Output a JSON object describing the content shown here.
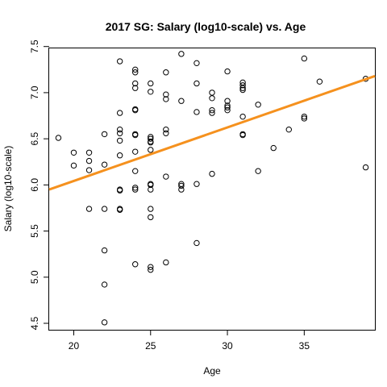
{
  "chart_data": {
    "type": "scatter",
    "title": "2017 SG: Salary (log10-scale) vs. Age",
    "xlabel": "Age",
    "ylabel": "Salary (log10-scale)",
    "xlim": [
      18.4,
      39.6
    ],
    "ylim": [
      4.43,
      7.48
    ],
    "x_ticks": [
      20,
      25,
      30,
      35
    ],
    "y_ticks": [
      4.5,
      5.0,
      5.5,
      6.0,
      6.5,
      7.0,
      7.5
    ],
    "x_tick_labels": [
      "20",
      "25",
      "30",
      "35"
    ],
    "y_tick_labels": [
      "4.5",
      "5.0",
      "5.5",
      "6.0",
      "6.5",
      "7.0",
      "7.5"
    ],
    "grid": false,
    "legend": "none",
    "fit_line": {
      "color": "#F5911E",
      "start": {
        "x": 18.4,
        "y": 5.95
      },
      "end": {
        "x": 39.6,
        "y": 7.18
      }
    },
    "points": [
      {
        "x": 19,
        "y": 6.51
      },
      {
        "x": 20,
        "y": 6.35
      },
      {
        "x": 20,
        "y": 6.21
      },
      {
        "x": 21,
        "y": 6.35
      },
      {
        "x": 21,
        "y": 6.26
      },
      {
        "x": 21,
        "y": 6.16
      },
      {
        "x": 21,
        "y": 5.74
      },
      {
        "x": 22,
        "y": 6.55
      },
      {
        "x": 22,
        "y": 6.22
      },
      {
        "x": 22,
        "y": 5.74
      },
      {
        "x": 22,
        "y": 5.29
      },
      {
        "x": 22,
        "y": 4.92
      },
      {
        "x": 22,
        "y": 4.51
      },
      {
        "x": 23,
        "y": 7.34
      },
      {
        "x": 23,
        "y": 6.78
      },
      {
        "x": 23,
        "y": 6.6
      },
      {
        "x": 23,
        "y": 6.56
      },
      {
        "x": 23,
        "y": 6.48
      },
      {
        "x": 23,
        "y": 6.32
      },
      {
        "x": 23,
        "y": 5.95
      },
      {
        "x": 23,
        "y": 5.94
      },
      {
        "x": 23,
        "y": 5.74
      },
      {
        "x": 23,
        "y": 5.73
      },
      {
        "x": 24,
        "y": 7.25
      },
      {
        "x": 24,
        "y": 7.22
      },
      {
        "x": 24,
        "y": 7.1
      },
      {
        "x": 24,
        "y": 7.05
      },
      {
        "x": 24,
        "y": 6.82
      },
      {
        "x": 24,
        "y": 6.81
      },
      {
        "x": 24,
        "y": 6.55
      },
      {
        "x": 24,
        "y": 6.54
      },
      {
        "x": 24,
        "y": 6.36
      },
      {
        "x": 24,
        "y": 6.15
      },
      {
        "x": 24,
        "y": 5.97
      },
      {
        "x": 24,
        "y": 5.95
      },
      {
        "x": 24,
        "y": 5.14
      },
      {
        "x": 25,
        "y": 7.1
      },
      {
        "x": 25,
        "y": 7.01
      },
      {
        "x": 25,
        "y": 6.52
      },
      {
        "x": 25,
        "y": 6.5
      },
      {
        "x": 25,
        "y": 6.47
      },
      {
        "x": 25,
        "y": 6.46
      },
      {
        "x": 25,
        "y": 6.38
      },
      {
        "x": 25,
        "y": 6.01
      },
      {
        "x": 25,
        "y": 6.0
      },
      {
        "x": 25,
        "y": 5.95
      },
      {
        "x": 25,
        "y": 5.74
      },
      {
        "x": 25,
        "y": 5.65
      },
      {
        "x": 25,
        "y": 5.11
      },
      {
        "x": 25,
        "y": 5.08
      },
      {
        "x": 26,
        "y": 7.22
      },
      {
        "x": 26,
        "y": 6.98
      },
      {
        "x": 26,
        "y": 6.93
      },
      {
        "x": 26,
        "y": 6.6
      },
      {
        "x": 26,
        "y": 6.56
      },
      {
        "x": 26,
        "y": 6.09
      },
      {
        "x": 26,
        "y": 5.16
      },
      {
        "x": 27,
        "y": 7.42
      },
      {
        "x": 27,
        "y": 6.91
      },
      {
        "x": 27,
        "y": 6.01
      },
      {
        "x": 27,
        "y": 5.99
      },
      {
        "x": 27,
        "y": 5.95
      },
      {
        "x": 28,
        "y": 7.32
      },
      {
        "x": 28,
        "y": 7.1
      },
      {
        "x": 28,
        "y": 6.79
      },
      {
        "x": 28,
        "y": 6.01
      },
      {
        "x": 28,
        "y": 5.37
      },
      {
        "x": 29,
        "y": 7.0
      },
      {
        "x": 29,
        "y": 6.94
      },
      {
        "x": 29,
        "y": 6.81
      },
      {
        "x": 29,
        "y": 6.78
      },
      {
        "x": 29,
        "y": 6.12
      },
      {
        "x": 30,
        "y": 7.23
      },
      {
        "x": 30,
        "y": 6.91
      },
      {
        "x": 30,
        "y": 6.86
      },
      {
        "x": 30,
        "y": 6.84
      },
      {
        "x": 30,
        "y": 6.81
      },
      {
        "x": 31,
        "y": 7.11
      },
      {
        "x": 31,
        "y": 7.08
      },
      {
        "x": 31,
        "y": 7.05
      },
      {
        "x": 31,
        "y": 7.03
      },
      {
        "x": 31,
        "y": 6.74
      },
      {
        "x": 31,
        "y": 6.55
      },
      {
        "x": 31,
        "y": 6.54
      },
      {
        "x": 32,
        "y": 6.87
      },
      {
        "x": 32,
        "y": 6.15
      },
      {
        "x": 33,
        "y": 6.4
      },
      {
        "x": 34,
        "y": 6.6
      },
      {
        "x": 35,
        "y": 7.37
      },
      {
        "x": 35,
        "y": 6.74
      },
      {
        "x": 35,
        "y": 6.72
      },
      {
        "x": 36,
        "y": 7.12
      },
      {
        "x": 39,
        "y": 7.15
      },
      {
        "x": 39,
        "y": 6.19
      }
    ]
  }
}
